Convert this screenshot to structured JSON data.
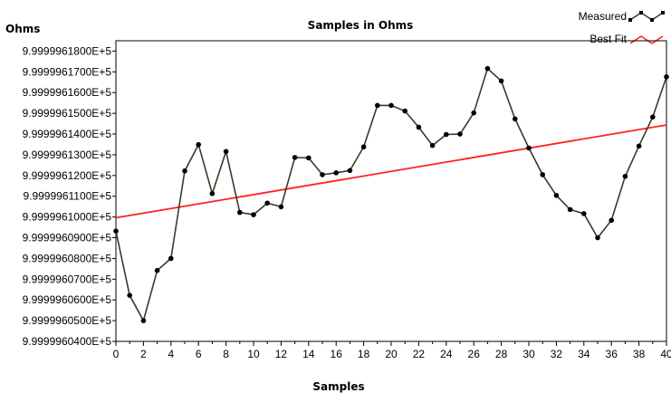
{
  "chart_data": {
    "type": "line",
    "title": "Samples in Ohms",
    "xlabel": "Samples",
    "ylabel": "Ohms",
    "xlim": [
      0,
      40
    ],
    "ylim": [
      999996.04,
      999996.185
    ],
    "x_ticks": [
      "0",
      "2",
      "4",
      "6",
      "8",
      "10",
      "12",
      "14",
      "16",
      "18",
      "20",
      "22",
      "24",
      "26",
      "28",
      "30",
      "32",
      "34",
      "36",
      "38",
      "40"
    ],
    "y_ticks": [
      {
        "value": 999996.04,
        "label": "9.9999960400E+5"
      },
      {
        "value": 999996.05,
        "label": "9.9999960500E+5"
      },
      {
        "value": 999996.06,
        "label": "9.9999960600E+5"
      },
      {
        "value": 999996.07,
        "label": "9.9999960700E+5"
      },
      {
        "value": 999996.08,
        "label": "9.9999960800E+5"
      },
      {
        "value": 999996.09,
        "label": "9.9999960900E+5"
      },
      {
        "value": 999996.1,
        "label": "9.9999961000E+5"
      },
      {
        "value": 999996.11,
        "label": "9.9999961100E+5"
      },
      {
        "value": 999996.12,
        "label": "9.9999961200E+5"
      },
      {
        "value": 999996.13,
        "label": "9.9999961300E+5"
      },
      {
        "value": 999996.14,
        "label": "9.9999961400E+5"
      },
      {
        "value": 999996.15,
        "label": "9.9999961500E+5"
      },
      {
        "value": 999996.16,
        "label": "9.9999961600E+5"
      },
      {
        "value": 999996.17,
        "label": "9.9999961700E+5"
      },
      {
        "value": 999996.18,
        "label": "9.9999961800E+5"
      }
    ],
    "legend_position": "top-right",
    "grid": false,
    "series": [
      {
        "name": "Measured",
        "color": "#000000",
        "line_color": "#3a3a2a",
        "markers": true,
        "x": [
          0,
          1,
          2,
          3,
          4,
          5,
          6,
          7,
          8,
          9,
          10,
          11,
          12,
          13,
          14,
          15,
          16,
          17,
          18,
          19,
          20,
          21,
          22,
          23,
          24,
          25,
          26,
          27,
          28,
          29,
          30,
          31,
          32,
          33,
          34,
          35,
          36,
          37,
          38,
          39,
          40
        ],
        "y": [
          999996.0932,
          999996.0622,
          999996.05,
          999996.0742,
          999996.08,
          999996.1222,
          999996.1349,
          999996.1113,
          999996.1316,
          999996.1022,
          999996.1011,
          999996.1067,
          999996.1049,
          999996.1287,
          999996.1285,
          999996.1204,
          999996.1213,
          999996.1224,
          999996.1338,
          999996.1538,
          999996.1538,
          999996.1511,
          999996.1433,
          999996.1345,
          999996.1398,
          999996.14,
          999996.1502,
          999996.1716,
          999996.1656,
          999996.1473,
          999996.1333,
          999996.1204,
          999996.1104,
          999996.1036,
          999996.1016,
          999996.09,
          999996.0984,
          999996.1196,
          999996.1342,
          999996.1482,
          999996.1676
        ]
      },
      {
        "name": "Best Fit",
        "color": "#ff2020",
        "markers": false,
        "x": [
          0,
          40
        ],
        "y": [
          999996.0996,
          999996.1444
        ]
      }
    ]
  }
}
